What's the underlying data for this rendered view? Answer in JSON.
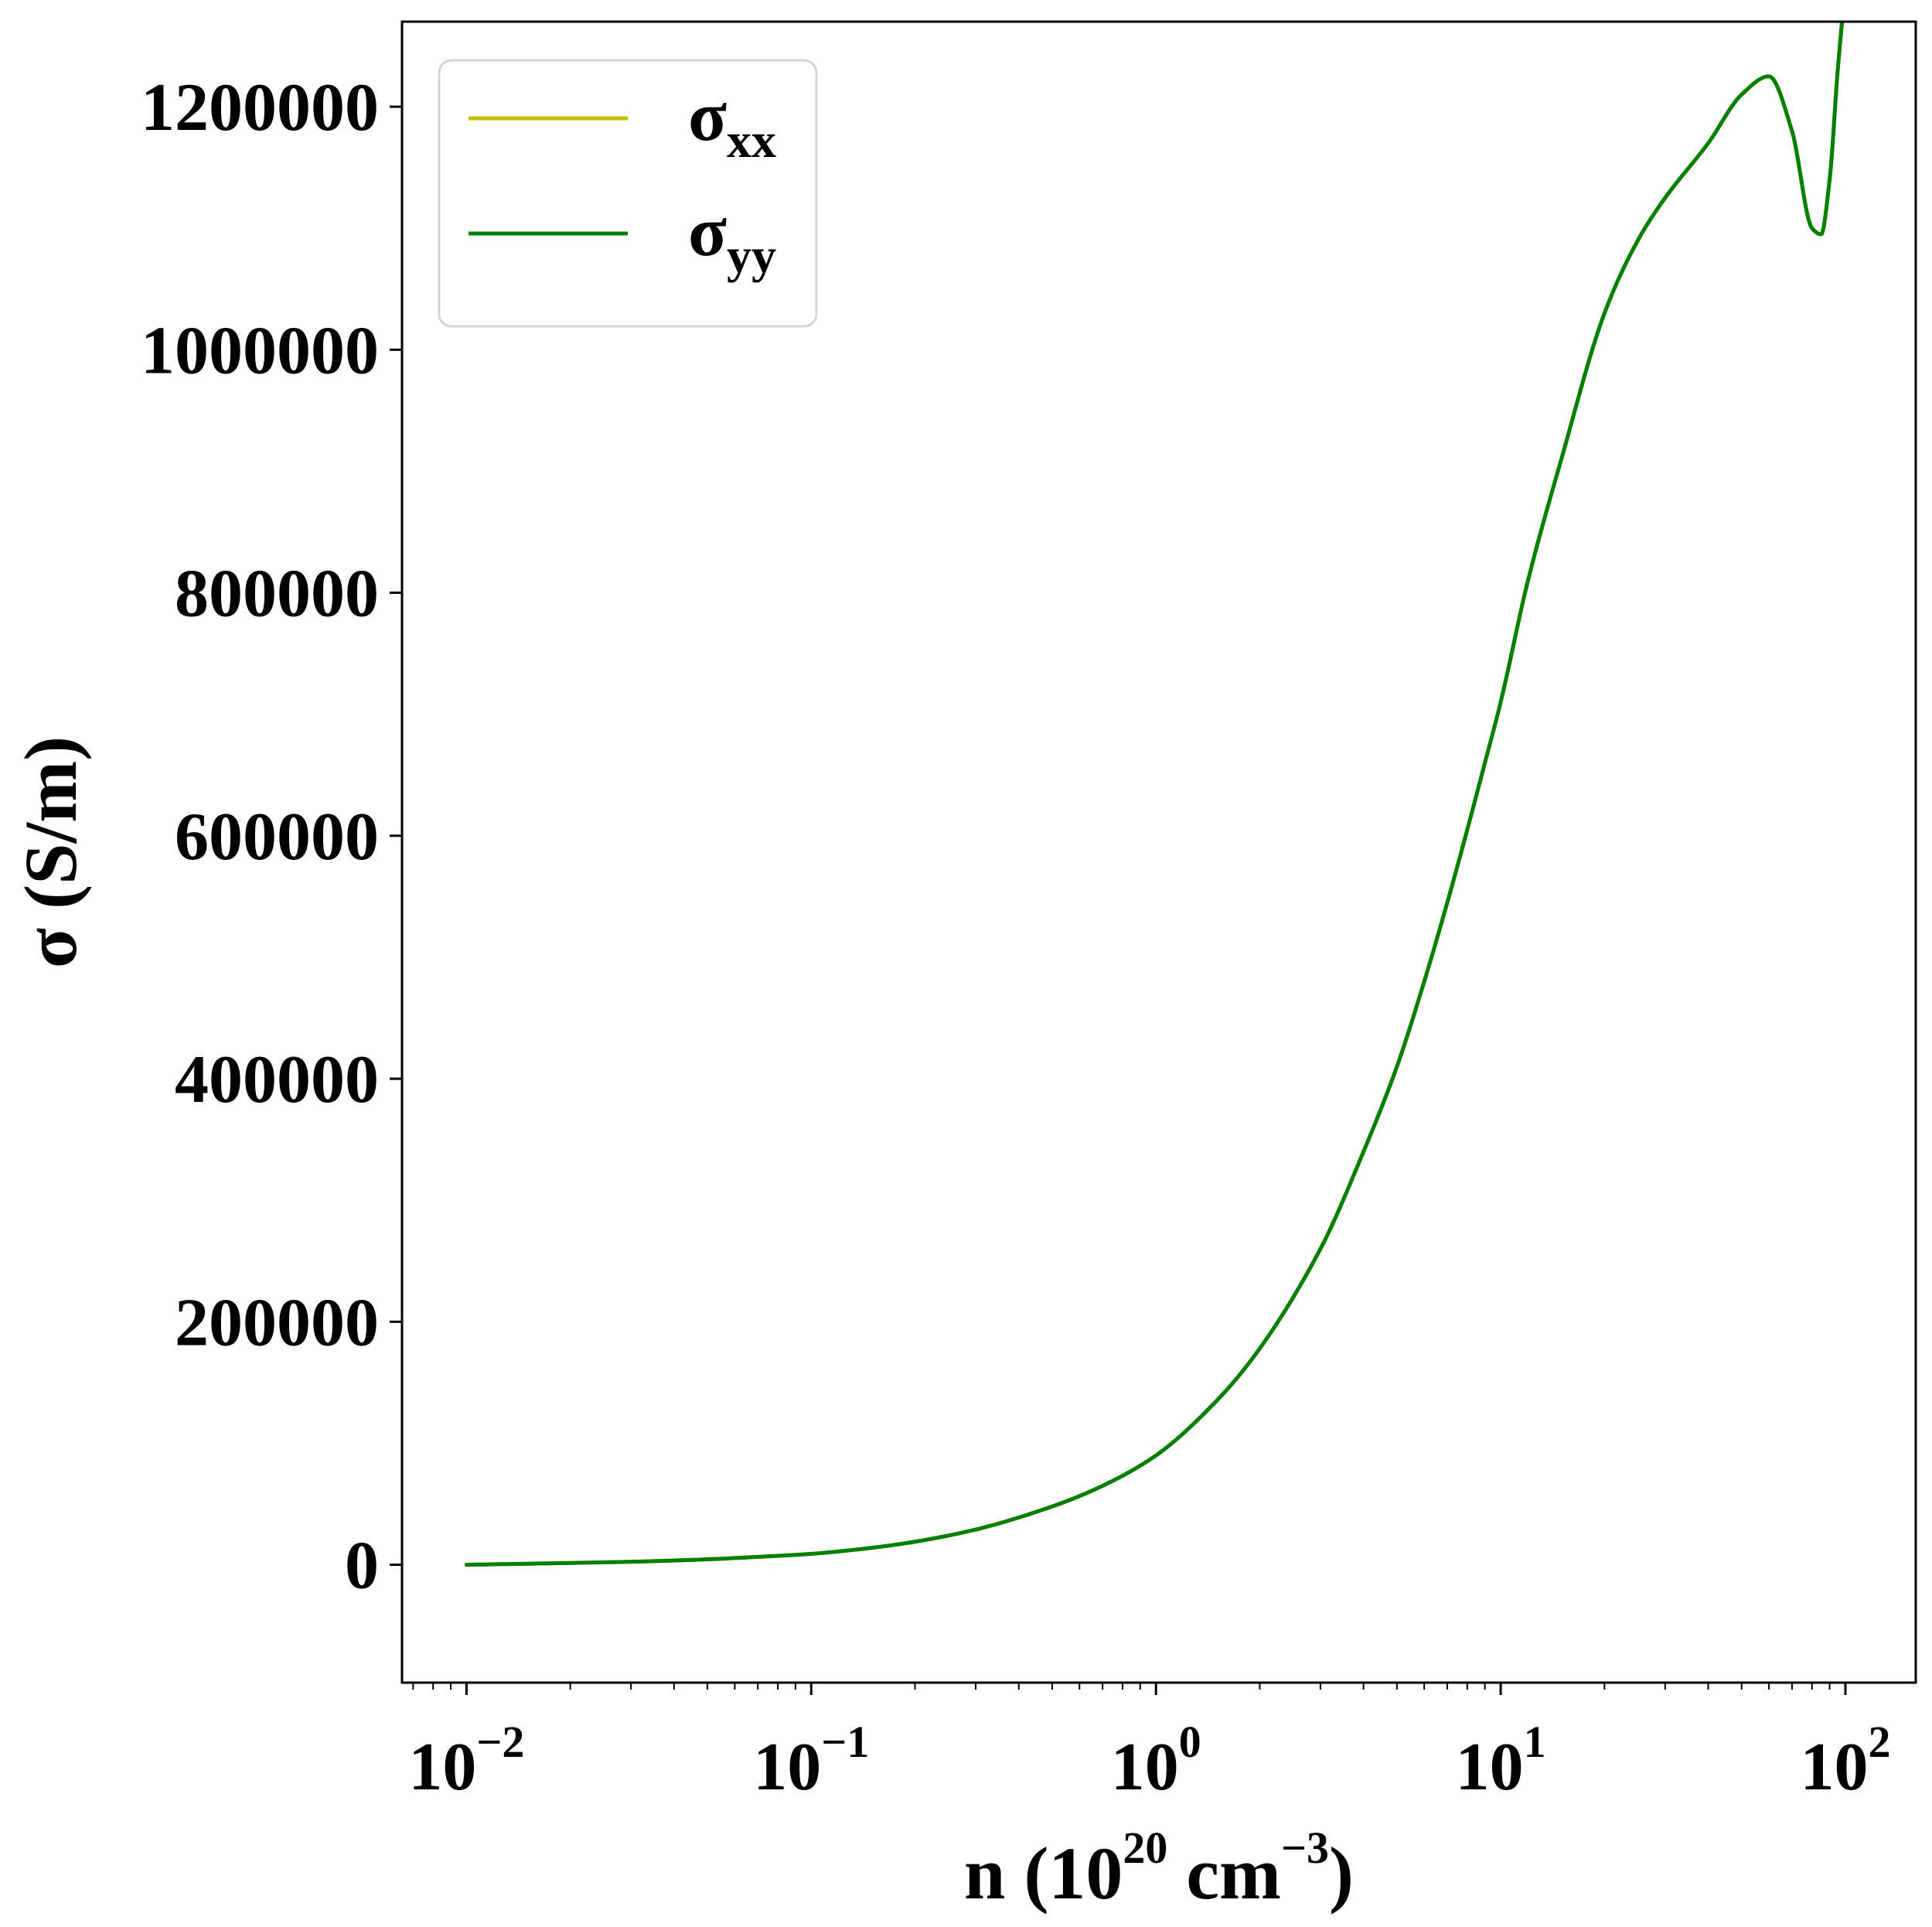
{
  "chart_data": {
    "type": "line",
    "xscale": "log",
    "xlim": [
      0.0065,
      160
    ],
    "ylim": [
      -97000,
      1270000
    ],
    "x_ticks": [
      {
        "value": 0.01,
        "base": "10",
        "exp": "−2"
      },
      {
        "value": 0.1,
        "base": "10",
        "exp": "−1"
      },
      {
        "value": 1,
        "base": "10",
        "exp": "0"
      },
      {
        "value": 10,
        "base": "10",
        "exp": "1"
      },
      {
        "value": 100,
        "base": "10",
        "exp": "2"
      }
    ],
    "y_ticks": [
      {
        "value": 0,
        "label": "0"
      },
      {
        "value": 200000,
        "label": "200000"
      },
      {
        "value": 400000,
        "label": "400000"
      },
      {
        "value": 600000,
        "label": "600000"
      },
      {
        "value": 800000,
        "label": "800000"
      },
      {
        "value": 1000000,
        "label": "1000000"
      },
      {
        "value": 1200000,
        "label": "1200000"
      }
    ],
    "xlabel": {
      "main": "n (10",
      "sup1": "20",
      "mid": " cm",
      "sup2": "−3",
      "end": ")"
    },
    "ylabel": "σ (S/m)",
    "legend": {
      "position": "upper-left",
      "entries": [
        {
          "symbol": "σ",
          "sub": "xx",
          "color": "#bfbf00"
        },
        {
          "symbol": "σ",
          "sub": "yy",
          "color": "#007f00"
        }
      ]
    },
    "grid": false,
    "series": [
      {
        "name": "σxx",
        "color": "#bfbf00",
        "x": [
          0.01,
          0.02,
          0.03,
          0.05,
          0.07,
          0.1,
          0.15,
          0.2,
          0.3,
          0.5,
          0.7,
          1.0,
          1.5,
          2.0,
          3.0,
          4.0,
          5.0,
          6.0,
          7.0,
          8.0,
          9.0,
          10.0,
          12.0,
          15.0,
          20.0,
          25.0,
          30.0,
          40.0,
          50.0,
          60.0,
          70.0,
          80.0,
          85.0,
          90.0,
          95.0,
          100.0
        ],
        "y": [
          0,
          1500,
          2500,
          4500,
          6500,
          9000,
          14000,
          19000,
          29000,
          48000,
          65000,
          90000,
          135000,
          178000,
          260000,
          340000,
          410000,
          480000,
          545000,
          605000,
          660000,
          710000,
          810000,
          910000,
          1030000,
          1090000,
          1125000,
          1170000,
          1210000,
          1225000,
          1180000,
          1100000,
          1095000,
          1140000,
          1230000,
          1300000
        ]
      },
      {
        "name": "σyy",
        "color": "#007f00",
        "x": [
          0.01,
          0.02,
          0.03,
          0.05,
          0.07,
          0.1,
          0.15,
          0.2,
          0.3,
          0.5,
          0.7,
          1.0,
          1.5,
          2.0,
          3.0,
          4.0,
          5.0,
          6.0,
          7.0,
          8.0,
          9.0,
          10.0,
          12.0,
          15.0,
          20.0,
          25.0,
          30.0,
          40.0,
          50.0,
          60.0,
          70.0,
          80.0,
          85.0,
          90.0,
          95.0,
          100.0
        ],
        "y": [
          0,
          1500,
          2500,
          4500,
          6500,
          9000,
          14000,
          19000,
          29000,
          48000,
          65000,
          90000,
          135000,
          178000,
          260000,
          340000,
          410000,
          480000,
          545000,
          605000,
          660000,
          710000,
          810000,
          910000,
          1030000,
          1090000,
          1125000,
          1170000,
          1210000,
          1225000,
          1180000,
          1100000,
          1095000,
          1140000,
          1230000,
          1300000
        ]
      }
    ]
  }
}
